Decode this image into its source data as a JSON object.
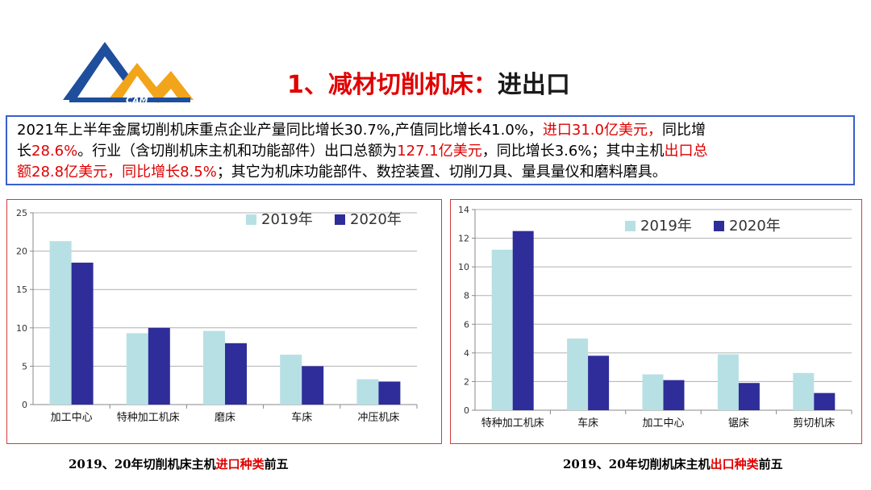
{
  "logo": {
    "text": "CAM",
    "colors": {
      "blue": "#1f4e9c",
      "orange": "#f2a51a"
    }
  },
  "title": {
    "main": "1、减材切削机床：",
    "tail": "进出口"
  },
  "summary": {
    "lines": [
      [
        {
          "t": "2021年上半年金属切削机床重点企业产量同比增长30.7%,产值同比增长41.0%，",
          "red": false
        },
        {
          "t": "进口31.0亿美元，",
          "red": true
        },
        {
          "t": "同比增",
          "red": false
        }
      ],
      [
        {
          "t": "长",
          "red": false
        },
        {
          "t": "28.6%",
          "red": true
        },
        {
          "t": "。行业（含切削机床主机和功能部件）出口总额为",
          "red": false
        },
        {
          "t": "127.1亿美元",
          "red": true
        },
        {
          "t": "，同比增长3.6%；其中主机",
          "red": false
        },
        {
          "t": "出口总",
          "red": true
        }
      ],
      [
        {
          "t": "额28.8亿美元，同比增长8.5%",
          "red": true
        },
        {
          "t": "；其它为机床功能部件、数控装置、切削刀具、量具量仪和磨料磨具。",
          "red": false
        }
      ]
    ]
  },
  "chart_data": [
    {
      "type": "bar",
      "categories": [
        "加工中心",
        "特种加工机床",
        "磨床",
        "车床",
        "冲压机床"
      ],
      "series": [
        {
          "name": "2019年",
          "values": [
            21.3,
            9.3,
            9.6,
            6.5,
            3.3
          ],
          "color": "#b7e0e4"
        },
        {
          "name": "2020年",
          "values": [
            18.5,
            10.0,
            8.0,
            5.0,
            3.0
          ],
          "color": "#2e2d9a"
        }
      ],
      "ylim": [
        0,
        25
      ],
      "yticks": [
        "0",
        "5",
        "10",
        "15",
        "20",
        "25"
      ],
      "grid": true,
      "legend": "top-right",
      "title": "",
      "xlabel": "",
      "ylabel": ""
    },
    {
      "type": "bar",
      "categories": [
        "特种加工机床",
        "车床",
        "加工中心",
        "锯床",
        "剪切机床"
      ],
      "series": [
        {
          "name": "2019年",
          "values": [
            11.2,
            5.0,
            2.5,
            3.9,
            2.6
          ],
          "color": "#b7e0e4"
        },
        {
          "name": "2020年",
          "values": [
            12.5,
            3.8,
            2.1,
            1.9,
            1.2
          ],
          "color": "#2e2d9a"
        }
      ],
      "ylim": [
        0,
        14
      ],
      "yticks": [
        "0",
        "2",
        "4",
        "6",
        "8",
        "10",
        "12",
        "14"
      ],
      "grid": true,
      "legend": "top-right",
      "title": "",
      "xlabel": "",
      "ylabel": ""
    }
  ],
  "captions": [
    [
      {
        "t": "2019、20年切削机床主机",
        "red": false
      },
      {
        "t": "进口种类",
        "red": true
      },
      {
        "t": "前五",
        "red": false
      }
    ],
    [
      {
        "t": "2019、20年切削机床主机",
        "red": false
      },
      {
        "t": "出口种类",
        "red": true
      },
      {
        "t": "前五",
        "red": false
      }
    ]
  ]
}
